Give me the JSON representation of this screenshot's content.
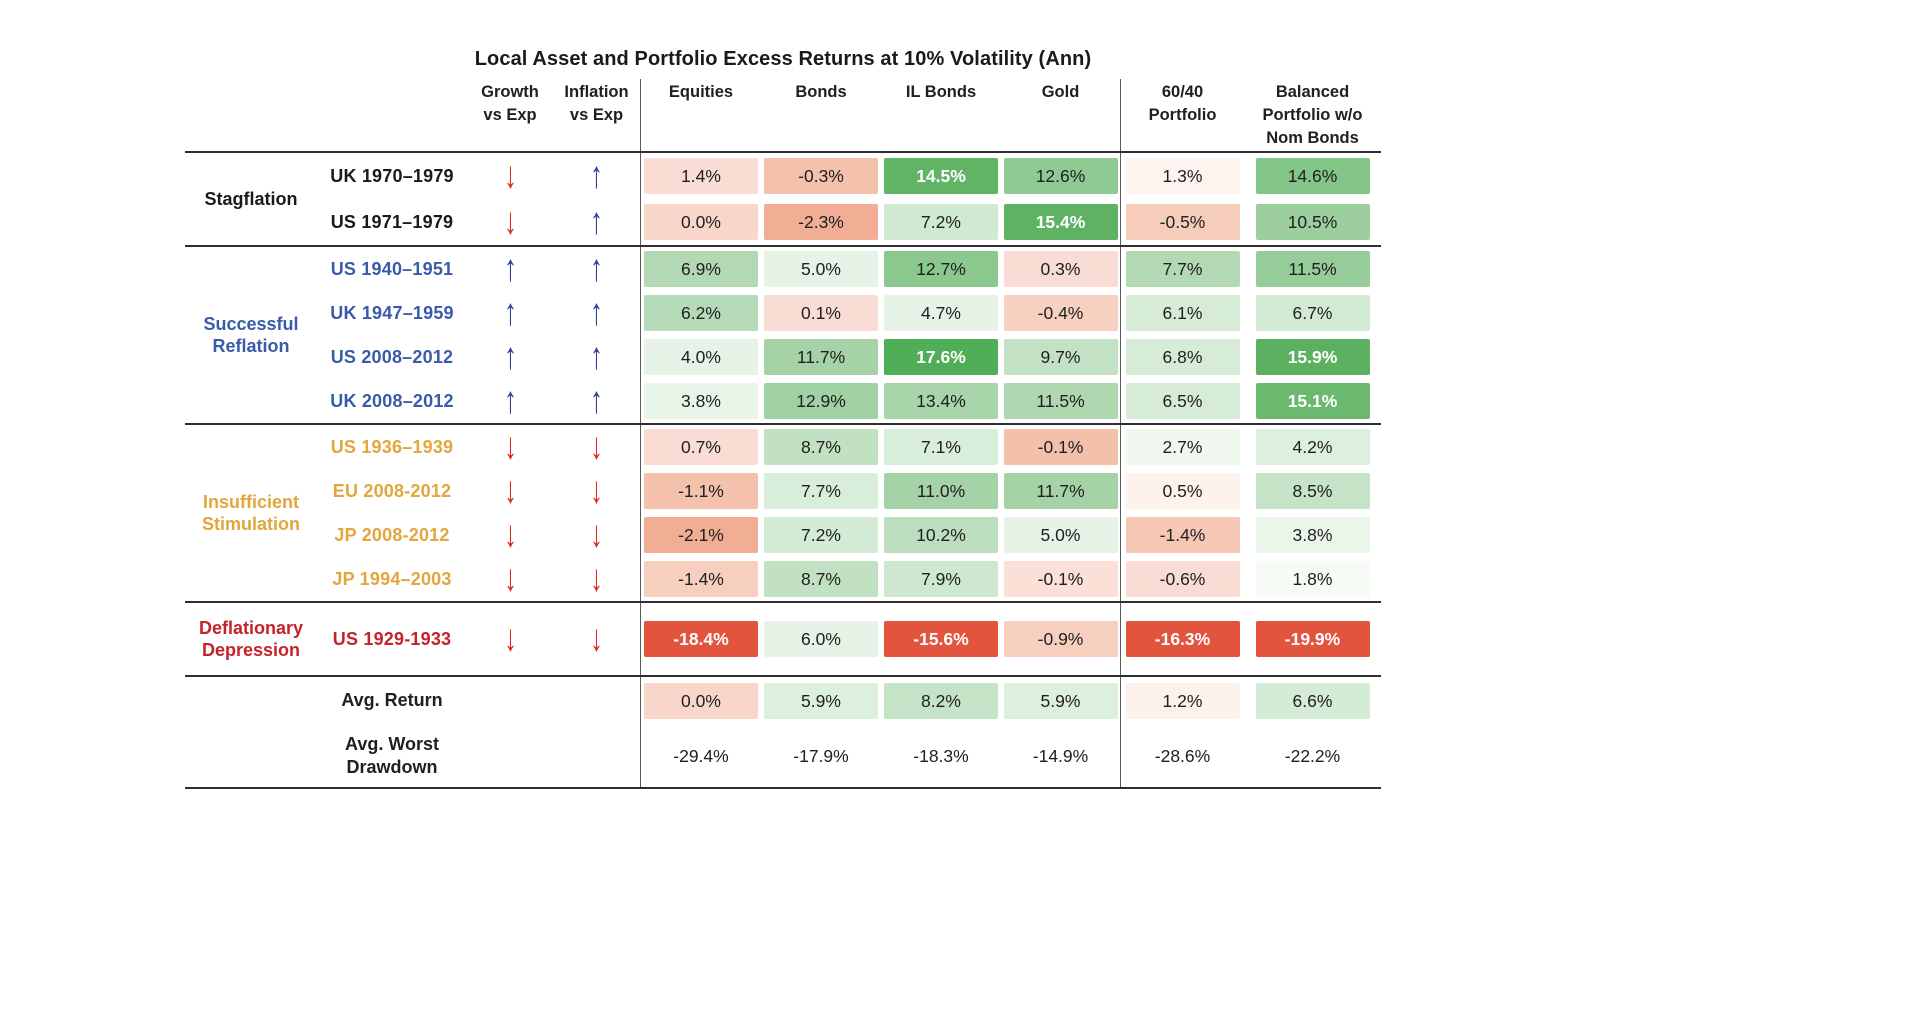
{
  "title": "Local Asset and Portfolio Excess Returns at 10% Volatility (Ann)",
  "icons": {
    "up": "↑",
    "down": "↓"
  },
  "colors": {
    "up_arrow": "#2c3e95",
    "down_arrow": "#e02a1f",
    "divider": "#5a5a5a",
    "rule": "#2e2e2e",
    "strong_negative": "#e2543e",
    "group_stagflation": "#1a1a1a",
    "group_reflation": "#3a5ba9",
    "group_insufficient": "#e2a63d",
    "group_depression": "#c4232a"
  },
  "columns": {
    "growth": [
      "Growth",
      "vs Exp"
    ],
    "inflation": [
      "Inflation",
      "vs Exp"
    ],
    "assets": [
      "Equities",
      "Bonds",
      "IL Bonds",
      "Gold"
    ],
    "portfolio_6040": [
      "60/40",
      "Portfolio"
    ],
    "portfolio_balanced": [
      "Balanced",
      "Portfolio w/o",
      "Nom Bonds"
    ]
  },
  "groups": [
    {
      "label": [
        "Stagflation"
      ],
      "color": "#1a1a1a",
      "rows": [
        {
          "label": "UK 1970–1979",
          "growth": "down",
          "inflation": "up",
          "cells": [
            {
              "v": "1.4%",
              "bg": "#f9dcd3"
            },
            {
              "v": "-0.3%",
              "bg": "#f4c2ac"
            },
            {
              "v": "14.5%",
              "bg": "#61b365",
              "fg": "w"
            },
            {
              "v": "12.6%",
              "bg": "#90ca93"
            },
            {
              "v": "1.3%",
              "bg": "#fdf4f0"
            },
            {
              "v": "14.6%",
              "bg": "#83c487"
            }
          ]
        },
        {
          "label": "US 1971–1979",
          "growth": "down",
          "inflation": "up",
          "cells": [
            {
              "v": "0.0%",
              "bg": "#f8d7ca"
            },
            {
              "v": "-2.3%",
              "bg": "#f1ae94"
            },
            {
              "v": "7.2%",
              "bg": "#d0e9d1"
            },
            {
              "v": "15.4%",
              "bg": "#5fb264",
              "fg": "w"
            },
            {
              "v": "-0.5%",
              "bg": "#f6ccbb"
            },
            {
              "v": "10.5%",
              "bg": "#9dcea0"
            }
          ]
        }
      ]
    },
    {
      "label": [
        "Successful",
        "Reflation"
      ],
      "color": "#3a5ba9",
      "rows": [
        {
          "label": "US 1940–1951",
          "growth": "up",
          "inflation": "up",
          "cells": [
            {
              "v": "6.9%",
              "bg": "#b2d9b4"
            },
            {
              "v": "5.0%",
              "bg": "#e6f3e6"
            },
            {
              "v": "12.7%",
              "bg": "#8bc88e"
            },
            {
              "v": "0.3%",
              "bg": "#f9dcd3"
            },
            {
              "v": "7.7%",
              "bg": "#b2d9b4"
            },
            {
              "v": "11.5%",
              "bg": "#96cc99"
            }
          ]
        },
        {
          "label": "UK 1947–1959",
          "growth": "up",
          "inflation": "up",
          "cells": [
            {
              "v": "6.2%",
              "bg": "#b6dbb8"
            },
            {
              "v": "0.1%",
              "bg": "#f9dcd3"
            },
            {
              "v": "4.7%",
              "bg": "#e6f3e6"
            },
            {
              "v": "-0.4%",
              "bg": "#f6d0c1"
            },
            {
              "v": "6.1%",
              "bg": "#d6ecd7"
            },
            {
              "v": "6.7%",
              "bg": "#d2ead3"
            }
          ]
        },
        {
          "label": "US 2008–2012",
          "growth": "up",
          "inflation": "up",
          "cells": [
            {
              "v": "4.0%",
              "bg": "#e6f3e6"
            },
            {
              "v": "11.7%",
              "bg": "#a5d3a7"
            },
            {
              "v": "17.6%",
              "bg": "#4fae57",
              "fg": "w"
            },
            {
              "v": "9.7%",
              "bg": "#c3e2c5"
            },
            {
              "v": "6.8%",
              "bg": "#d6ecd7"
            },
            {
              "v": "15.9%",
              "bg": "#5cb161",
              "fg": "w"
            }
          ]
        },
        {
          "label": "UK 2008–2012",
          "growth": "up",
          "inflation": "up",
          "cells": [
            {
              "v": "3.8%",
              "bg": "#e9f5e9"
            },
            {
              "v": "12.9%",
              "bg": "#a0d1a3"
            },
            {
              "v": "13.4%",
              "bg": "#a9d5ab"
            },
            {
              "v": "11.5%",
              "bg": "#afd8b1"
            },
            {
              "v": "6.5%",
              "bg": "#d6ecd7"
            },
            {
              "v": "15.1%",
              "bg": "#6bb96f",
              "fg": "w"
            }
          ]
        }
      ]
    },
    {
      "label": [
        "Insufficient",
        "Stimulation"
      ],
      "color": "#e2a63d",
      "rows": [
        {
          "label": "US 1936–1939",
          "growth": "down",
          "inflation": "down",
          "cells": [
            {
              "v": "0.7%",
              "bg": "#f9dcd3"
            },
            {
              "v": "8.7%",
              "bg": "#c2e1c3"
            },
            {
              "v": "7.1%",
              "bg": "#d9eeda"
            },
            {
              "v": "-0.1%",
              "bg": "#f3c0a9"
            },
            {
              "v": "2.7%",
              "bg": "#f0f8f0"
            },
            {
              "v": "4.2%",
              "bg": "#ddefde"
            }
          ]
        },
        {
          "label": "EU 2008-2012",
          "growth": "down",
          "inflation": "down",
          "cells": [
            {
              "v": "-1.1%",
              "bg": "#f4c2ac"
            },
            {
              "v": "7.7%",
              "bg": "#d9eeda"
            },
            {
              "v": "11.0%",
              "bg": "#a5d3a7"
            },
            {
              "v": "11.7%",
              "bg": "#a5d3a7"
            },
            {
              "v": "0.5%",
              "bg": "#fdf2ec"
            },
            {
              "v": "8.5%",
              "bg": "#c5e3c6"
            }
          ]
        },
        {
          "label": "JP 2008-2012",
          "growth": "down",
          "inflation": "down",
          "cells": [
            {
              "v": "-2.1%",
              "bg": "#f1ae94"
            },
            {
              "v": "7.2%",
              "bg": "#d4ebd5"
            },
            {
              "v": "10.2%",
              "bg": "#bcdebe"
            },
            {
              "v": "5.0%",
              "bg": "#e6f3e6"
            },
            {
              "v": "-1.4%",
              "bg": "#f5c7b4"
            },
            {
              "v": "3.8%",
              "bg": "#ebf6eb"
            }
          ]
        },
        {
          "label": "JP 1994–2003",
          "growth": "down",
          "inflation": "down",
          "cells": [
            {
              "v": "-1.4%",
              "bg": "#f6cfbf"
            },
            {
              "v": "8.7%",
              "bg": "#c2e1c3"
            },
            {
              "v": "7.9%",
              "bg": "#cee8cf"
            },
            {
              "v": "-0.1%",
              "bg": "#fae0d7"
            },
            {
              "v": "-0.6%",
              "bg": "#f9dcd3"
            },
            {
              "v": "1.8%",
              "bg": "#f6fbf6"
            }
          ]
        }
      ]
    },
    {
      "label": [
        "Deflationary",
        "Depression"
      ],
      "color": "#c4232a",
      "rows": [
        {
          "label": "US 1929-1933",
          "growth": "down",
          "inflation": "down",
          "cells": [
            {
              "v": "-18.4%",
              "bg": "#e2543e",
              "fg": "w"
            },
            {
              "v": "6.0%",
              "bg": "#e6f3e6"
            },
            {
              "v": "-15.6%",
              "bg": "#e2543e",
              "fg": "w"
            },
            {
              "v": "-0.9%",
              "bg": "#f6cfbf"
            },
            {
              "v": "-16.3%",
              "bg": "#e2543e",
              "fg": "w"
            },
            {
              "v": "-19.9%",
              "bg": "#e2543e",
              "fg": "w"
            }
          ]
        }
      ]
    }
  ],
  "summary": [
    {
      "label": [
        "Avg. Return"
      ],
      "cells": [
        {
          "v": "0.0%",
          "bg": "#f8d7ca"
        },
        {
          "v": "5.9%",
          "bg": "#ddefde"
        },
        {
          "v": "8.2%",
          "bg": "#c5e3c6"
        },
        {
          "v": "5.9%",
          "bg": "#ddefde"
        },
        {
          "v": "1.2%",
          "bg": "#fdf1eb"
        },
        {
          "v": "6.6%",
          "bg": "#d4ebd5"
        }
      ]
    },
    {
      "label": [
        "Avg. Worst",
        "Drawdown"
      ],
      "cells": [
        {
          "v": "-29.4%"
        },
        {
          "v": "-17.9%"
        },
        {
          "v": "-18.3%"
        },
        {
          "v": "-14.9%"
        },
        {
          "v": "-28.6%"
        },
        {
          "v": "-22.2%"
        }
      ]
    }
  ],
  "chart_data": {
    "type": "heatmap",
    "title": "Local Asset and Portfolio Excess Returns at 10% Volatility (Ann)",
    "columns": [
      "Equities",
      "Bonds",
      "IL Bonds",
      "Gold",
      "60/40 Portfolio",
      "Balanced Portfolio w/o Nom Bonds"
    ],
    "rows": [
      {
        "group": "Stagflation",
        "label": "UK 1970–1979",
        "growth_vs_exp": "down",
        "inflation_vs_exp": "up",
        "values": [
          1.4,
          -0.3,
          14.5,
          12.6,
          1.3,
          14.6
        ]
      },
      {
        "group": "Stagflation",
        "label": "US 1971–1979",
        "growth_vs_exp": "down",
        "inflation_vs_exp": "up",
        "values": [
          0.0,
          -2.3,
          7.2,
          15.4,
          -0.5,
          10.5
        ]
      },
      {
        "group": "Successful Reflation",
        "label": "US 1940–1951",
        "growth_vs_exp": "up",
        "inflation_vs_exp": "up",
        "values": [
          6.9,
          5.0,
          12.7,
          0.3,
          7.7,
          11.5
        ]
      },
      {
        "group": "Successful Reflation",
        "label": "UK 1947–1959",
        "growth_vs_exp": "up",
        "inflation_vs_exp": "up",
        "values": [
          6.2,
          0.1,
          4.7,
          -0.4,
          6.1,
          6.7
        ]
      },
      {
        "group": "Successful Reflation",
        "label": "US 2008–2012",
        "growth_vs_exp": "up",
        "inflation_vs_exp": "up",
        "values": [
          4.0,
          11.7,
          17.6,
          9.7,
          6.8,
          15.9
        ]
      },
      {
        "group": "Successful Reflation",
        "label": "UK 2008–2012",
        "growth_vs_exp": "up",
        "inflation_vs_exp": "up",
        "values": [
          3.8,
          12.9,
          13.4,
          11.5,
          6.5,
          15.1
        ]
      },
      {
        "group": "Insufficient Stimulation",
        "label": "US 1936–1939",
        "growth_vs_exp": "down",
        "inflation_vs_exp": "down",
        "values": [
          0.7,
          8.7,
          7.1,
          -0.1,
          2.7,
          4.2
        ]
      },
      {
        "group": "Insufficient Stimulation",
        "label": "EU 2008-2012",
        "growth_vs_exp": "down",
        "inflation_vs_exp": "down",
        "values": [
          -1.1,
          7.7,
          11.0,
          11.7,
          0.5,
          8.5
        ]
      },
      {
        "group": "Insufficient Stimulation",
        "label": "JP 2008-2012",
        "growth_vs_exp": "down",
        "inflation_vs_exp": "down",
        "values": [
          -2.1,
          7.2,
          10.2,
          5.0,
          -1.4,
          3.8
        ]
      },
      {
        "group": "Insufficient Stimulation",
        "label": "JP 1994–2003",
        "growth_vs_exp": "down",
        "inflation_vs_exp": "down",
        "values": [
          -1.4,
          8.7,
          7.9,
          -0.1,
          -0.6,
          1.8
        ]
      },
      {
        "group": "Deflationary Depression",
        "label": "US 1929-1933",
        "growth_vs_exp": "down",
        "inflation_vs_exp": "down",
        "values": [
          -18.4,
          6.0,
          -15.6,
          -0.9,
          -16.3,
          -19.9
        ]
      }
    ],
    "avg_return": [
      0.0,
      5.9,
      8.2,
      5.9,
      1.2,
      6.6
    ],
    "avg_worst_drawdown": [
      -29.4,
      -17.9,
      -18.3,
      -14.9,
      -28.6,
      -22.2
    ]
  }
}
